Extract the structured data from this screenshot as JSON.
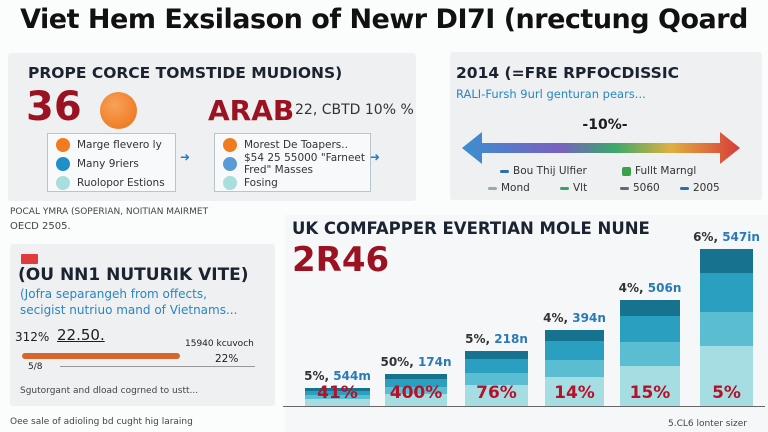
{
  "title": "Viet Hem Exsilason of Newr DI7I (nrectung Qoard",
  "panel1": {
    "heading": "PROPE CORCE TOMSTIDE MUDIONS)",
    "big_number": "36",
    "red_word": "ARAB",
    "stat_text": "22, CBTD 10% %",
    "legend_left": [
      {
        "label": "Marge flevero ly",
        "color": "#f07c1f"
      },
      {
        "label": "Many 9riers",
        "color": "#1f8fc8"
      },
      {
        "label": "Ruolopor Estions",
        "color": "#a8dede"
      }
    ],
    "legend_right": [
      {
        "label": "Morest De Toapers..",
        "color": "#f07c1f"
      },
      {
        "label": "$54 25 55000 \"Farneet Fred\" Masses",
        "color": "#5b9bd5"
      },
      {
        "label": "Fosing",
        "color": "#a8dede"
      }
    ]
  },
  "footnote1": [
    "POCAL YMRA (SOPERIAN, NOITIAN MAIRMET",
    "OECD 2505."
  ],
  "panel2": {
    "heading": "2014 (=FRE RPFOCDISSIC",
    "subtitle": "RALI-Fursh 9url genturan pears...",
    "arrow_label": "-10%-",
    "legend": [
      {
        "label": "Bou Thij Ulfier",
        "color": "#2a6fb0"
      },
      {
        "label": "Fullt Marngl",
        "color": "#3aa04a"
      },
      {
        "label": "Mond",
        "color": "#9aa"
      },
      {
        "label": "Vlt",
        "color": "#3aa06a"
      },
      {
        "label": "5060",
        "color": "#667"
      },
      {
        "label": "2005",
        "color": "#2a6fb0"
      }
    ]
  },
  "panel3": {
    "heading": "(OU NN1 NUTURIK VITE)",
    "subtitle": [
      "(Jofra separangeh from offects,",
      "secigist nutriuo mand of Vietnams..."
    ],
    "value_left": "312%",
    "value_mid": "22.50.",
    "value_right": "15940 kcuvoch",
    "value_pct": "22%",
    "value_small": "5/8",
    "note": "Sgutorgant and dload cogrned to ustt...",
    "flag_color": "#e23b3b"
  },
  "footnote2": "Oee sale of adioling bd cught hig laraing",
  "chart_data": {
    "type": "bar",
    "title": "UK COMFAPPER EVERTIAN MOLE NUNE",
    "subtitle": "2R46",
    "top_labels": [
      [
        "5%,",
        "544m"
      ],
      [
        "50%,",
        "174n"
      ],
      [
        "5%,",
        "218n"
      ],
      [
        "4%,",
        "394n"
      ],
      [
        "4%,",
        "506n"
      ],
      [
        "6%,",
        "547in"
      ]
    ],
    "inner_labels": [
      "41%",
      "400%",
      "76%",
      "14%",
      "15%",
      "5%"
    ],
    "values": [
      544,
      174,
      218,
      394,
      506,
      547
    ],
    "source": "5.CL6 lonter sizer",
    "colors": [
      "#a6dde2",
      "#5bbdd2",
      "#2a9fc0",
      "#16728f"
    ]
  }
}
